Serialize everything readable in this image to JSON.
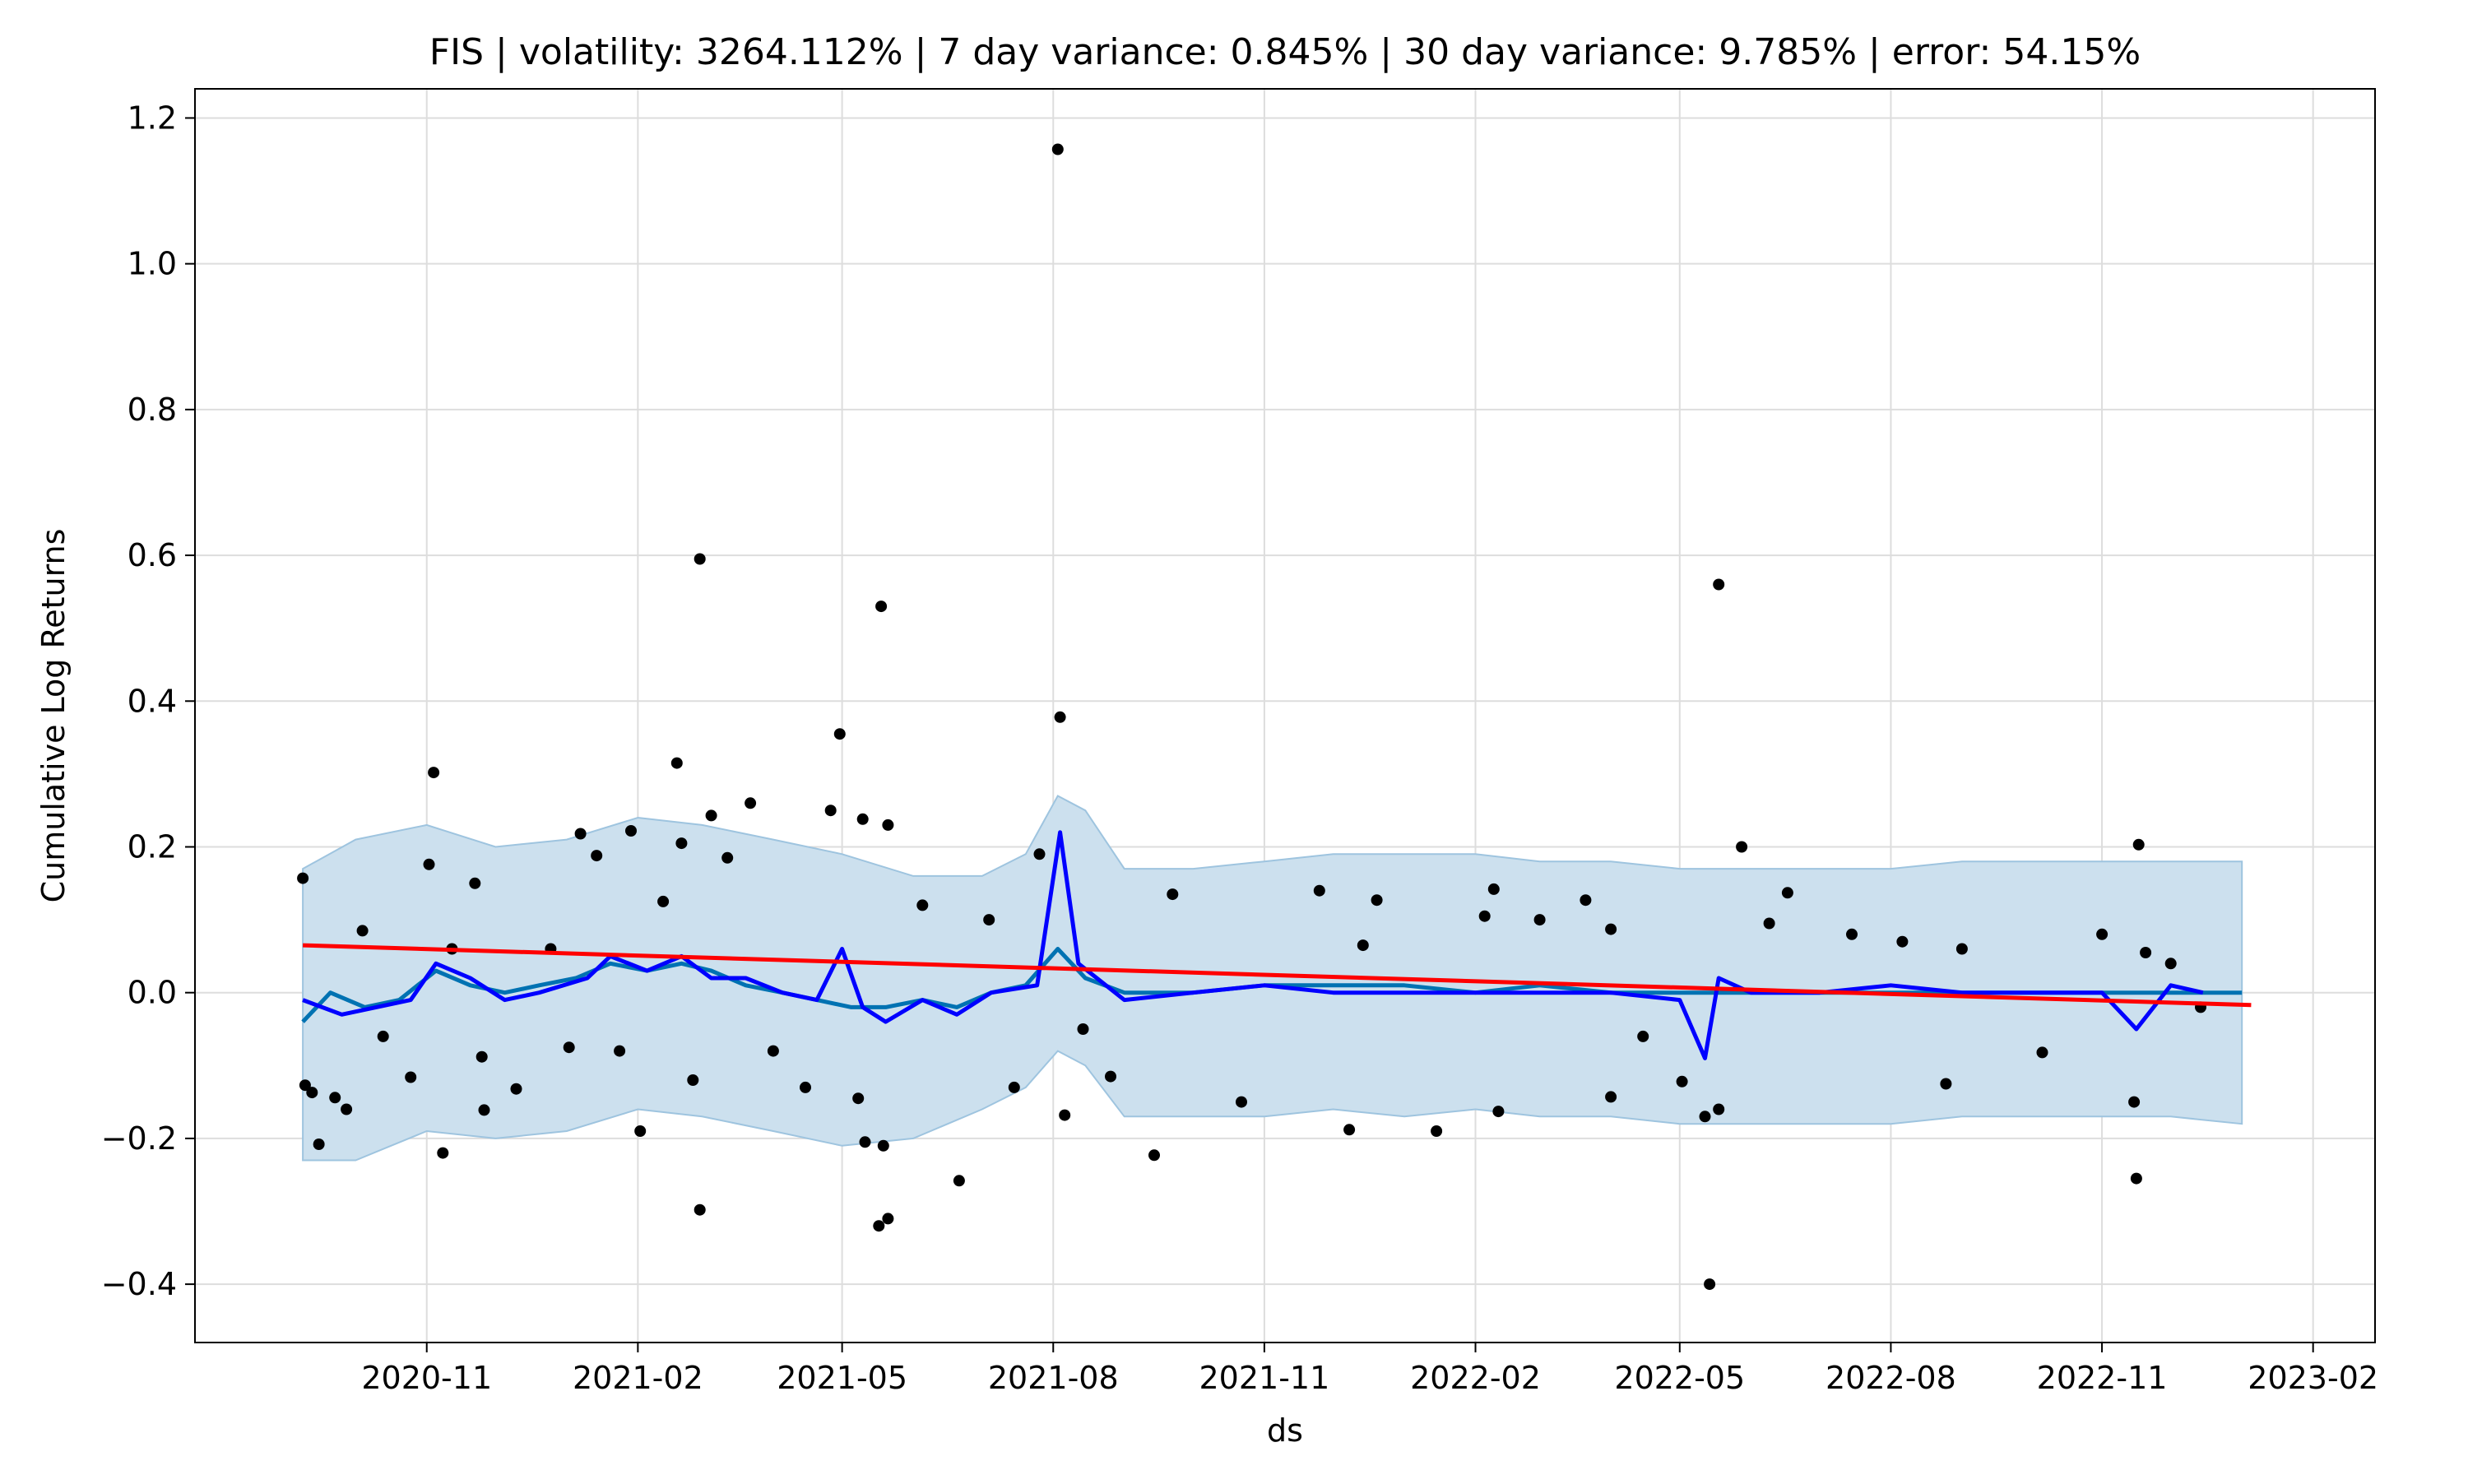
{
  "chart_data": {
    "type": "line",
    "title": "FIS | volatility: 3264.112% | 7 day variance: 0.845% | 30 day variance: 9.785% | error: 54.15%",
    "xlabel": "ds",
    "ylabel": "Cumulative Log Returns",
    "xlim": [
      "2020-07-23",
      "2023-02-28"
    ],
    "ylim": [
      -0.48,
      1.24
    ],
    "grid": true,
    "x_ticks": [
      "2020-11",
      "2021-02",
      "2021-05",
      "2021-08",
      "2021-11",
      "2022-02",
      "2022-05",
      "2022-08",
      "2022-11",
      "2023-02"
    ],
    "y_ticks": [
      -0.4,
      -0.2,
      0.0,
      0.2,
      0.4,
      0.6,
      0.8,
      1.0,
      1.2
    ],
    "y_tick_labels": [
      "−0.4",
      "−0.2",
      "0.0",
      "0.2",
      "0.4",
      "0.6",
      "0.8",
      "1.0",
      "1.2"
    ],
    "colors": {
      "observed": "#000000",
      "forecast": "#0072b2",
      "uncertainty": "#cce0ee",
      "uncertainty_edge": "#9ec4df",
      "rolling": "#0000ff",
      "trend": "#ff0000"
    },
    "series": [
      {
        "kind": "observed_points",
        "points": [
          [
            "2020-09-08",
            0.157
          ],
          [
            "2020-09-09",
            -0.127
          ],
          [
            "2020-09-12",
            -0.137
          ],
          [
            "2020-09-15",
            -0.208
          ],
          [
            "2020-09-22",
            -0.144
          ],
          [
            "2020-09-27",
            -0.16
          ],
          [
            "2020-10-04",
            0.085
          ],
          [
            "2020-10-13",
            -0.06
          ],
          [
            "2020-10-25",
            -0.116
          ],
          [
            "2020-11-02",
            0.176
          ],
          [
            "2020-11-04",
            0.302
          ],
          [
            "2020-11-08",
            -0.22
          ],
          [
            "2020-11-12",
            0.06
          ],
          [
            "2020-11-22",
            0.15
          ],
          [
            "2020-11-25",
            -0.088
          ],
          [
            "2020-11-26",
            -0.161
          ],
          [
            "2020-12-10",
            -0.132
          ],
          [
            "2020-12-25",
            0.06
          ],
          [
            "2021-01-02",
            -0.075
          ],
          [
            "2021-01-07",
            0.218
          ],
          [
            "2021-01-14",
            0.188
          ],
          [
            "2021-01-24",
            -0.08
          ],
          [
            "2021-01-29",
            0.222
          ],
          [
            "2021-02-02",
            -0.19
          ],
          [
            "2021-02-12",
            0.125
          ],
          [
            "2021-02-18",
            0.315
          ],
          [
            "2021-02-20",
            0.205
          ],
          [
            "2021-02-25",
            -0.12
          ],
          [
            "2021-02-28",
            0.595
          ],
          [
            "2021-02-28",
            -0.298
          ],
          [
            "2021-03-05",
            0.243
          ],
          [
            "2021-03-12",
            0.185
          ],
          [
            "2021-03-22",
            0.26
          ],
          [
            "2021-04-01",
            -0.08
          ],
          [
            "2021-04-15",
            -0.13
          ],
          [
            "2021-04-26",
            0.25
          ],
          [
            "2021-04-30",
            0.355
          ],
          [
            "2021-05-08",
            -0.145
          ],
          [
            "2021-05-10",
            0.238
          ],
          [
            "2021-05-11",
            -0.205
          ],
          [
            "2021-05-17",
            -0.32
          ],
          [
            "2021-05-18",
            0.53
          ],
          [
            "2021-05-19",
            -0.21
          ],
          [
            "2021-05-21",
            -0.31
          ],
          [
            "2021-05-21",
            0.23
          ],
          [
            "2021-06-05",
            0.12
          ],
          [
            "2021-06-21",
            -0.258
          ],
          [
            "2021-07-04",
            0.1
          ],
          [
            "2021-07-15",
            -0.13
          ],
          [
            "2021-07-26",
            0.19
          ],
          [
            "2021-08-03",
            1.157
          ],
          [
            "2021-08-04",
            0.378
          ],
          [
            "2021-08-06",
            -0.168
          ],
          [
            "2021-08-14",
            -0.05
          ],
          [
            "2021-08-26",
            -0.115
          ],
          [
            "2021-09-14",
            -0.223
          ],
          [
            "2021-09-22",
            0.135
          ],
          [
            "2021-10-22",
            -0.15
          ],
          [
            "2021-11-25",
            0.14
          ],
          [
            "2021-12-08",
            -0.188
          ],
          [
            "2021-12-14",
            0.065
          ],
          [
            "2021-12-20",
            0.127
          ],
          [
            "2022-01-15",
            -0.19
          ],
          [
            "2022-02-05",
            0.105
          ],
          [
            "2022-02-09",
            0.142
          ],
          [
            "2022-02-11",
            -0.163
          ],
          [
            "2022-03-01",
            0.1
          ],
          [
            "2022-03-21",
            0.127
          ],
          [
            "2022-04-01",
            0.087
          ],
          [
            "2022-04-01",
            -0.143
          ],
          [
            "2022-04-15",
            -0.06
          ],
          [
            "2022-05-02",
            -0.122
          ],
          [
            "2022-05-12",
            -0.17
          ],
          [
            "2022-05-14",
            -0.4
          ],
          [
            "2022-05-18",
            0.56
          ],
          [
            "2022-05-18",
            -0.16
          ],
          [
            "2022-05-28",
            0.2
          ],
          [
            "2022-06-09",
            0.095
          ],
          [
            "2022-06-17",
            0.137
          ],
          [
            "2022-07-15",
            0.08
          ],
          [
            "2022-08-06",
            0.07
          ],
          [
            "2022-08-25",
            -0.125
          ],
          [
            "2022-09-01",
            0.06
          ],
          [
            "2022-10-06",
            -0.082
          ],
          [
            "2022-11-01",
            0.08
          ],
          [
            "2022-11-15",
            -0.15
          ],
          [
            "2022-11-16",
            -0.255
          ],
          [
            "2022-11-17",
            0.203
          ],
          [
            "2022-11-20",
            0.055
          ],
          [
            "2022-12-01",
            0.04
          ],
          [
            "2022-12-14",
            -0.02
          ]
        ]
      },
      {
        "kind": "uncertainty_band",
        "upper": [
          [
            "2020-09-08",
            0.17
          ],
          [
            "2020-10-01",
            0.21
          ],
          [
            "2020-11-01",
            0.23
          ],
          [
            "2020-12-01",
            0.2
          ],
          [
            "2021-01-01",
            0.21
          ],
          [
            "2021-02-01",
            0.24
          ],
          [
            "2021-03-01",
            0.23
          ],
          [
            "2021-04-01",
            0.21
          ],
          [
            "2021-05-01",
            0.19
          ],
          [
            "2021-06-01",
            0.16
          ],
          [
            "2021-07-01",
            0.16
          ],
          [
            "2021-07-20",
            0.19
          ],
          [
            "2021-08-03",
            0.27
          ],
          [
            "2021-08-15",
            0.25
          ],
          [
            "2021-09-01",
            0.17
          ],
          [
            "2021-10-01",
            0.17
          ],
          [
            "2021-11-01",
            0.18
          ],
          [
            "2021-12-01",
            0.19
          ],
          [
            "2022-01-01",
            0.19
          ],
          [
            "2022-02-01",
            0.19
          ],
          [
            "2022-03-01",
            0.18
          ],
          [
            "2022-04-01",
            0.18
          ],
          [
            "2022-05-01",
            0.17
          ],
          [
            "2022-06-01",
            0.17
          ],
          [
            "2022-07-01",
            0.17
          ],
          [
            "2022-08-01",
            0.17
          ],
          [
            "2022-09-01",
            0.18
          ],
          [
            "2022-10-01",
            0.18
          ],
          [
            "2022-11-01",
            0.18
          ],
          [
            "2022-12-01",
            0.18
          ],
          [
            "2023-01-01",
            0.18
          ]
        ],
        "lower": [
          [
            "2020-09-08",
            -0.23
          ],
          [
            "2020-10-01",
            -0.23
          ],
          [
            "2020-11-01",
            -0.19
          ],
          [
            "2020-12-01",
            -0.2
          ],
          [
            "2021-01-01",
            -0.19
          ],
          [
            "2021-02-01",
            -0.16
          ],
          [
            "2021-03-01",
            -0.17
          ],
          [
            "2021-04-01",
            -0.19
          ],
          [
            "2021-05-01",
            -0.21
          ],
          [
            "2021-06-01",
            -0.2
          ],
          [
            "2021-07-01",
            -0.16
          ],
          [
            "2021-07-20",
            -0.13
          ],
          [
            "2021-08-03",
            -0.08
          ],
          [
            "2021-08-15",
            -0.1
          ],
          [
            "2021-09-01",
            -0.17
          ],
          [
            "2021-10-01",
            -0.17
          ],
          [
            "2021-11-01",
            -0.17
          ],
          [
            "2021-12-01",
            -0.16
          ],
          [
            "2022-01-01",
            -0.17
          ],
          [
            "2022-02-01",
            -0.16
          ],
          [
            "2022-03-01",
            -0.17
          ],
          [
            "2022-04-01",
            -0.17
          ],
          [
            "2022-05-01",
            -0.18
          ],
          [
            "2022-06-01",
            -0.18
          ],
          [
            "2022-07-01",
            -0.18
          ],
          [
            "2022-08-01",
            -0.18
          ],
          [
            "2022-09-01",
            -0.17
          ],
          [
            "2022-10-01",
            -0.17
          ],
          [
            "2022-11-01",
            -0.17
          ],
          [
            "2022-12-01",
            -0.17
          ],
          [
            "2023-01-01",
            -0.18
          ]
        ]
      },
      {
        "kind": "forecast_line",
        "points": [
          [
            "2020-09-08",
            -0.04
          ],
          [
            "2020-09-20",
            0.0
          ],
          [
            "2020-10-05",
            -0.02
          ],
          [
            "2020-10-20",
            -0.01
          ],
          [
            "2020-11-05",
            0.03
          ],
          [
            "2020-11-20",
            0.01
          ],
          [
            "2020-12-05",
            0.0
          ],
          [
            "2020-12-20",
            0.01
          ],
          [
            "2021-01-05",
            0.02
          ],
          [
            "2021-01-20",
            0.04
          ],
          [
            "2021-02-05",
            0.03
          ],
          [
            "2021-02-20",
            0.04
          ],
          [
            "2021-03-05",
            0.03
          ],
          [
            "2021-03-20",
            0.01
          ],
          [
            "2021-04-05",
            0.0
          ],
          [
            "2021-04-20",
            -0.01
          ],
          [
            "2021-05-05",
            -0.02
          ],
          [
            "2021-05-20",
            -0.02
          ],
          [
            "2021-06-05",
            -0.01
          ],
          [
            "2021-06-20",
            -0.02
          ],
          [
            "2021-07-05",
            0.0
          ],
          [
            "2021-07-20",
            0.01
          ],
          [
            "2021-08-03",
            0.06
          ],
          [
            "2021-08-15",
            0.02
          ],
          [
            "2021-09-01",
            0.0
          ],
          [
            "2021-10-01",
            0.0
          ],
          [
            "2021-11-01",
            0.01
          ],
          [
            "2021-12-01",
            0.01
          ],
          [
            "2022-01-01",
            0.01
          ],
          [
            "2022-02-01",
            0.0
          ],
          [
            "2022-03-01",
            0.01
          ],
          [
            "2022-04-01",
            0.0
          ],
          [
            "2022-05-01",
            0.0
          ],
          [
            "2022-06-01",
            0.0
          ],
          [
            "2022-07-01",
            0.0
          ],
          [
            "2022-08-01",
            0.0
          ],
          [
            "2022-09-01",
            0.0
          ],
          [
            "2022-10-01",
            0.0
          ],
          [
            "2022-11-01",
            0.0
          ],
          [
            "2022-12-01",
            0.0
          ],
          [
            "2023-01-01",
            0.0
          ]
        ]
      },
      {
        "kind": "rolling_line",
        "points": [
          [
            "2020-09-08",
            -0.01
          ],
          [
            "2020-09-25",
            -0.03
          ],
          [
            "2020-10-10",
            -0.02
          ],
          [
            "2020-10-25",
            -0.01
          ],
          [
            "2020-11-05",
            0.04
          ],
          [
            "2020-11-20",
            0.02
          ],
          [
            "2020-12-05",
            -0.01
          ],
          [
            "2020-12-20",
            0.0
          ],
          [
            "2021-01-10",
            0.02
          ],
          [
            "2021-01-20",
            0.05
          ],
          [
            "2021-02-05",
            0.03
          ],
          [
            "2021-02-20",
            0.05
          ],
          [
            "2021-03-05",
            0.02
          ],
          [
            "2021-03-20",
            0.02
          ],
          [
            "2021-04-05",
            0.0
          ],
          [
            "2021-04-20",
            -0.01
          ],
          [
            "2021-05-01",
            0.06
          ],
          [
            "2021-05-10",
            -0.02
          ],
          [
            "2021-05-20",
            -0.04
          ],
          [
            "2021-06-05",
            -0.01
          ],
          [
            "2021-06-20",
            -0.03
          ],
          [
            "2021-07-05",
            0.0
          ],
          [
            "2021-07-25",
            0.01
          ],
          [
            "2021-08-04",
            0.22
          ],
          [
            "2021-08-12",
            0.04
          ],
          [
            "2021-09-01",
            -0.01
          ],
          [
            "2021-10-01",
            0.0
          ],
          [
            "2021-11-01",
            0.01
          ],
          [
            "2021-12-01",
            0.0
          ],
          [
            "2022-01-01",
            0.0
          ],
          [
            "2022-02-01",
            0.0
          ],
          [
            "2022-03-01",
            0.0
          ],
          [
            "2022-04-01",
            0.0
          ],
          [
            "2022-05-01",
            -0.01
          ],
          [
            "2022-05-12",
            -0.09
          ],
          [
            "2022-05-18",
            0.02
          ],
          [
            "2022-06-01",
            0.0
          ],
          [
            "2022-07-01",
            0.0
          ],
          [
            "2022-08-01",
            0.01
          ],
          [
            "2022-09-01",
            0.0
          ],
          [
            "2022-10-01",
            0.0
          ],
          [
            "2022-11-01",
            0.0
          ],
          [
            "2022-11-16",
            -0.05
          ],
          [
            "2022-12-01",
            0.01
          ],
          [
            "2022-12-15",
            0.0
          ]
        ]
      },
      {
        "kind": "trend_line",
        "points": [
          [
            "2020-09-08",
            0.065
          ],
          [
            "2023-01-05",
            -0.017
          ]
        ]
      }
    ]
  }
}
